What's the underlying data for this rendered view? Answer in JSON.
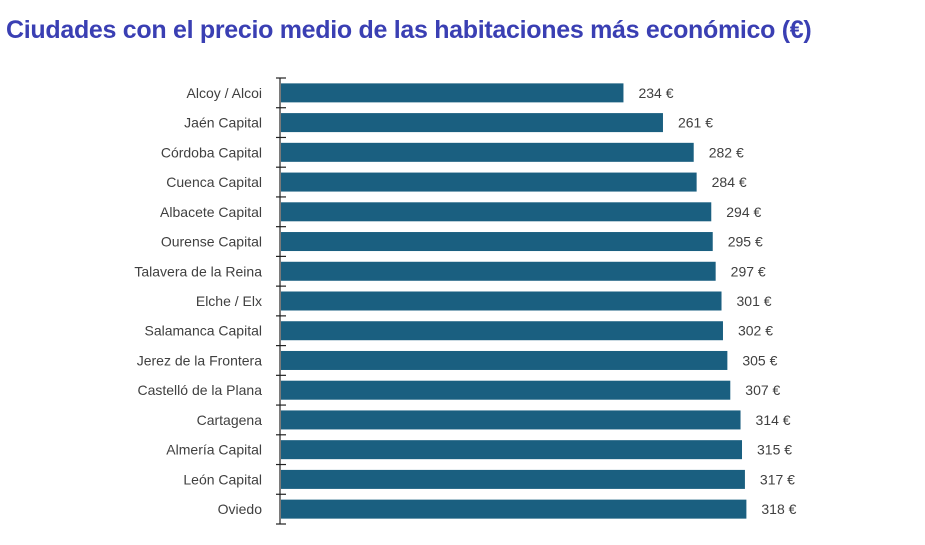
{
  "chart_data": {
    "type": "bar",
    "orientation": "horizontal",
    "title": "Ciudades con el precio medio de las habitaciones más económico (€)",
    "categories": [
      "Alcoy / Alcoi",
      "Jaén Capital",
      "Córdoba Capital",
      "Cuenca Capital",
      "Albacete Capital",
      "Ourense Capital",
      "Talavera de la Reina",
      "Elche / Elx",
      "Salamanca Capital",
      "Jerez de la Frontera",
      "Castelló de la Plana",
      "Cartagena",
      "Almería Capital",
      "León Capital",
      "Oviedo"
    ],
    "values": [
      234,
      261,
      282,
      284,
      294,
      295,
      297,
      301,
      302,
      305,
      307,
      314,
      315,
      317,
      318
    ],
    "data_labels": [
      "234 €",
      "261 €",
      "282 €",
      "284 €",
      "294 €",
      "295 €",
      "297 €",
      "301 €",
      "302 €",
      "305 €",
      "307 €",
      "314 €",
      "315 €",
      "317 €",
      "318 €"
    ],
    "xlim": [
      0,
      440
    ],
    "x_axis_visible": false,
    "grid": false,
    "legend": "none",
    "colors": {
      "bar": "#1a5f80",
      "title": "#3a3fb3",
      "text": "#404040"
    }
  }
}
